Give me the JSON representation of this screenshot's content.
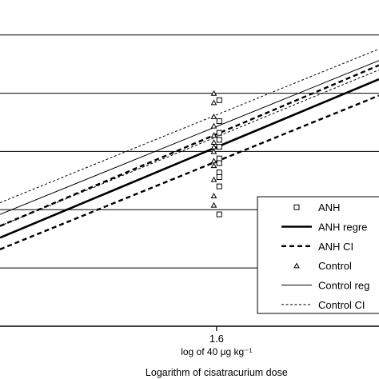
{
  "chart_data": {
    "type": "scatter",
    "title": "",
    "xlabel": "Logarithm of cisatracurium dose",
    "x_tick_labels": [
      {
        "x": 1.6,
        "label": "1.6",
        "sublabel": "log of 40 μg kg⁻¹"
      }
    ],
    "grid": {
      "horizontal": true,
      "vertical": false
    },
    "legend": {
      "position": "bottom-right",
      "entries": [
        {
          "label": "ANH",
          "marker": "square",
          "line": "none"
        },
        {
          "label": "ANH regre",
          "marker": "none",
          "line": "solid-thick"
        },
        {
          "label": "ANH CI",
          "marker": "none",
          "line": "dashed-thick"
        },
        {
          "label": "Control",
          "marker": "triangle",
          "line": "none"
        },
        {
          "label": "Control reg",
          "marker": "none",
          "line": "solid-thin"
        },
        {
          "label": "Control CI",
          "marker": "none",
          "line": "dotted-thin"
        }
      ]
    },
    "series": [
      {
        "name": "ANH",
        "kind": "points",
        "marker": "square",
        "points": [
          [
            1.605,
            0.97
          ],
          [
            1.605,
            0.88
          ],
          [
            1.605,
            0.83
          ],
          [
            1.605,
            0.8
          ],
          [
            1.605,
            0.77
          ],
          [
            1.605,
            0.72
          ],
          [
            1.605,
            0.7
          ],
          [
            1.605,
            0.66
          ],
          [
            1.605,
            0.64
          ],
          [
            1.605,
            0.6
          ],
          [
            1.605,
            0.48
          ]
        ]
      },
      {
        "name": "Control",
        "kind": "points",
        "marker": "triangle",
        "points": [
          [
            1.595,
            1.0
          ],
          [
            1.595,
            0.96
          ],
          [
            1.595,
            0.9
          ],
          [
            1.595,
            0.86
          ],
          [
            1.595,
            0.82
          ],
          [
            1.595,
            0.79
          ],
          [
            1.595,
            0.77
          ],
          [
            1.595,
            0.75
          ],
          [
            1.595,
            0.71
          ],
          [
            1.595,
            0.69
          ],
          [
            1.595,
            0.63
          ],
          [
            1.595,
            0.56
          ],
          [
            1.595,
            0.52
          ]
        ]
      },
      {
        "name": "ANH regre",
        "kind": "line",
        "style": "solid-thick",
        "points": [
          [
            1.2,
            0.38
          ],
          [
            1.9,
            1.06
          ]
        ]
      },
      {
        "name": "ANH CI upper",
        "kind": "line",
        "style": "dashed-thick",
        "points": [
          [
            1.2,
            0.43
          ],
          [
            1.9,
            1.12
          ]
        ]
      },
      {
        "name": "ANH CI lower",
        "kind": "line",
        "style": "dashed-thick",
        "points": [
          [
            1.2,
            0.33
          ],
          [
            1.9,
            0.99
          ]
        ]
      },
      {
        "name": "Control reg",
        "kind": "line",
        "style": "solid-thin",
        "points": [
          [
            1.2,
            0.48
          ],
          [
            1.9,
            1.14
          ]
        ]
      },
      {
        "name": "Control CI upper",
        "kind": "line",
        "style": "dotted-thin",
        "points": [
          [
            1.2,
            0.53
          ],
          [
            1.9,
            1.19
          ]
        ]
      },
      {
        "name": "Control CI lower",
        "kind": "line",
        "style": "dotted-thin",
        "points": [
          [
            1.2,
            0.43
          ],
          [
            1.9,
            1.1
          ]
        ]
      }
    ],
    "x_range": [
      1.2,
      1.9
    ],
    "y_range": [
      0.0,
      1.4
    ],
    "y_gridlines": [
      0.25,
      0.5,
      0.75,
      1.0,
      1.25
    ]
  }
}
